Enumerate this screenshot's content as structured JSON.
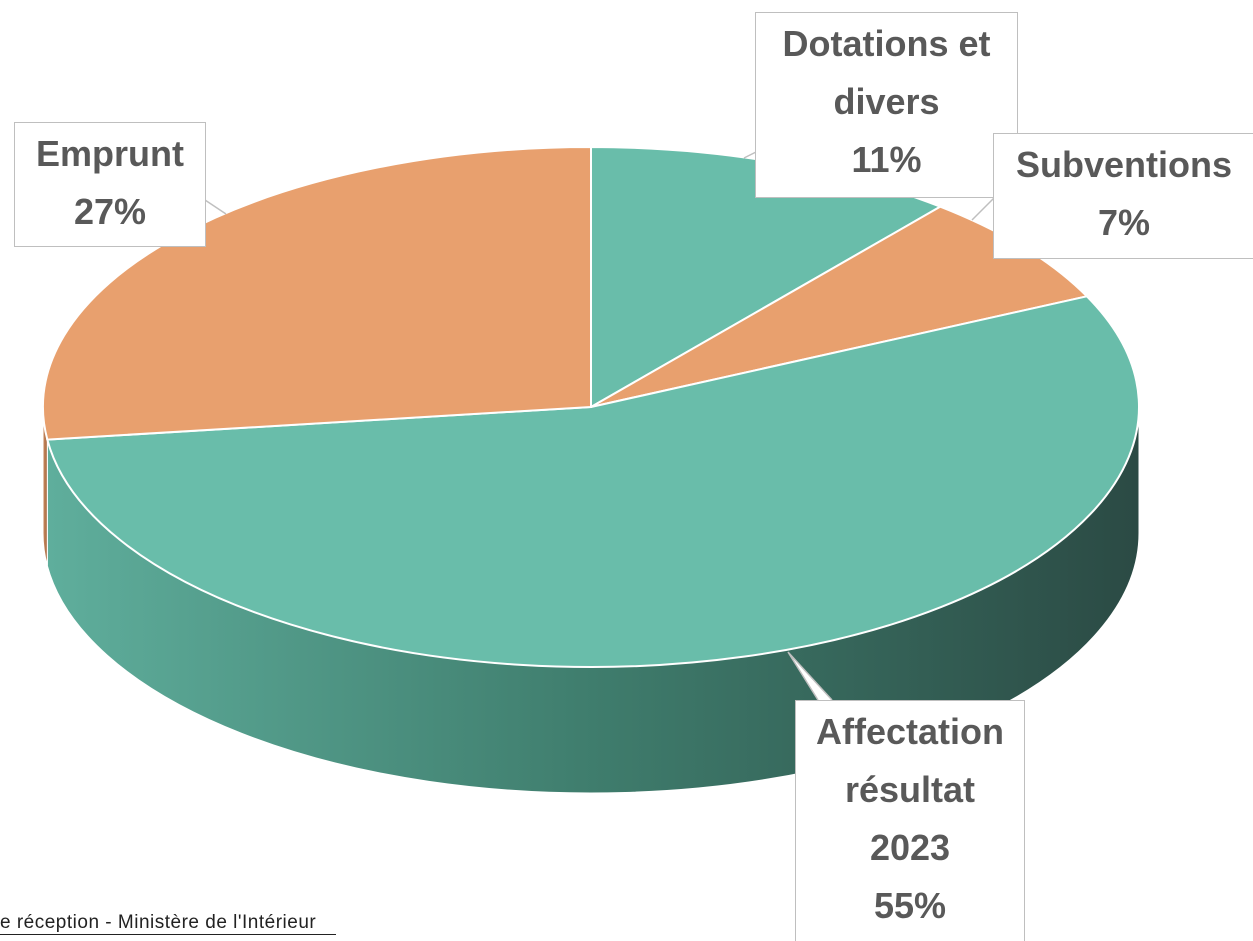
{
  "chart_data": {
    "type": "pie",
    "categories": [
      "Dotations et divers",
      "Subventions",
      "Affectation résultat 2023",
      "Emprunt"
    ],
    "values": [
      11,
      7,
      55,
      27
    ],
    "value_labels": [
      "11%",
      "7%",
      "55%",
      "27%"
    ],
    "colors": [
      "#69bdaa",
      "#e8a06e",
      "#69bdaa",
      "#e8a06e"
    ],
    "start_angle": 0,
    "direction": "clockwise",
    "three_d": true
  },
  "footer_text": "e réception - Ministère de l'Intérieur"
}
